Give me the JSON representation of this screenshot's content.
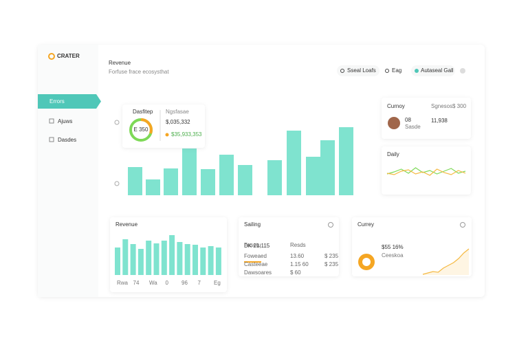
{
  "sidebar": {
    "logo": "CRATER",
    "nav": [
      "Errors",
      "Ajuws",
      "Dasdes"
    ]
  },
  "header": {
    "title": "Revenue",
    "subtitle": "Forfuse frace ecosysthat",
    "search": "Sseal Loafs",
    "filter": "Eag",
    "toggle": "Autaseal Gall"
  },
  "main_chart": {
    "type": "bar",
    "color": "#7fe3cf",
    "values": [
      41,
      23,
      39,
      68,
      38,
      59,
      44,
      51,
      94,
      56,
      80,
      99
    ]
  },
  "popup": {
    "label": "Dasfitep",
    "sublabel": "Ngsfasae",
    "donut_label": "E 350",
    "value": "$,035,332",
    "subvalue": "$35,933,353"
  },
  "card_currency": {
    "title": "Curnoy",
    "meta": "Sgnesos",
    "amount": "$ 300",
    "count": "08",
    "count_label": "Sasde",
    "value": "11,938"
  },
  "card_daily": {
    "title": "Daily",
    "chart": {
      "type": "line",
      "series": [
        {
          "color": "#7ed957",
          "values": [
            5,
            8,
            12,
            6,
            14,
            7,
            10,
            5,
            9,
            13,
            6,
            9
          ]
        },
        {
          "color": "#f5b942",
          "values": [
            6,
            4,
            9,
            11,
            5,
            8,
            3,
            12,
            7,
            4,
            10,
            6
          ]
        }
      ]
    }
  },
  "card_revenue": {
    "title": "Revenue",
    "chart": {
      "type": "bar",
      "color": "#7fe3cf",
      "values": [
        40,
        52,
        45,
        38,
        50,
        46,
        50,
        58,
        48,
        45,
        44,
        40,
        42,
        40
      ],
      "x_labels": [
        "Rwa",
        "74",
        "Wa",
        "0",
        "96",
        "7",
        "Eg"
      ]
    }
  },
  "card_selling": {
    "title": "Sailing",
    "value": "DK 21,115",
    "rows": [
      [
        "Fasetu",
        "Resds"
      ],
      [
        "Foweaed",
        "13.60",
        "$ 235"
      ],
      [
        "Casteeae",
        "1.15 60",
        "$ 235"
      ],
      [
        "Dawsoares",
        "$ 60"
      ]
    ]
  },
  "card_currey": {
    "title": "Currey",
    "value": "$55 16%",
    "label": "Ceeskoa",
    "chart": {
      "type": "line",
      "color": "#f5b942",
      "values": [
        1,
        3,
        5,
        4,
        10,
        14,
        18,
        24,
        32,
        38
      ]
    }
  }
}
